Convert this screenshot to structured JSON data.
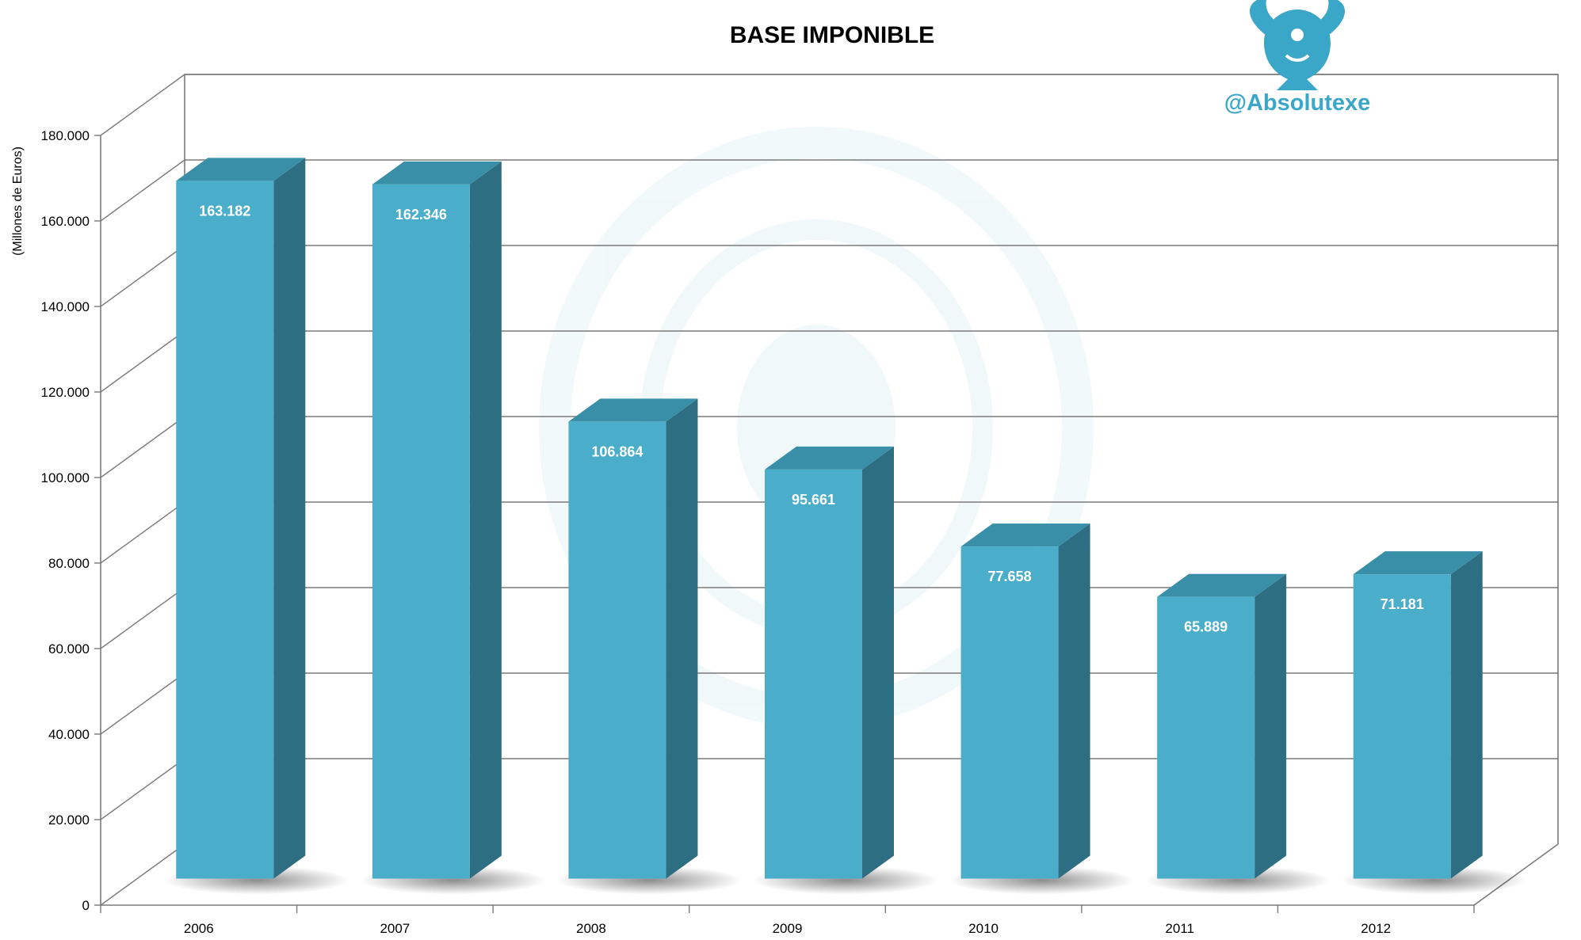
{
  "chart_data": {
    "type": "bar",
    "title": "BASE IMPONIBLE",
    "ylabel": "(Millones de Euros)",
    "xlabel": "",
    "categories": [
      "2006",
      "2007",
      "2008",
      "2009",
      "2010",
      "2011",
      "2012"
    ],
    "values": [
      163182,
      162346,
      106864,
      95661,
      77658,
      65889,
      71181
    ],
    "data_labels": [
      "163.182",
      "162.346",
      "106.864",
      "95.661",
      "77.658",
      "65.889",
      "71.181"
    ],
    "ylim": [
      0,
      180000
    ],
    "yticks": [
      0,
      20000,
      40000,
      60000,
      80000,
      100000,
      120000,
      140000,
      160000,
      180000
    ],
    "ytick_labels": [
      "0",
      "20.000",
      "40.000",
      "60.000",
      "80.000",
      "100.000",
      "120.000",
      "140.000",
      "160.000",
      "180.000"
    ],
    "grid": true,
    "style": "3d-bar"
  },
  "watermark": {
    "handle": "@Absolutexe",
    "icon": "griffin-logo-icon"
  },
  "colors": {
    "bar_front": "#4aaeca",
    "bar_side": "#2d6e82",
    "bar_top": "#3a8fa8",
    "brand": "#3aa6c8",
    "grid": "#7a7a7a"
  }
}
